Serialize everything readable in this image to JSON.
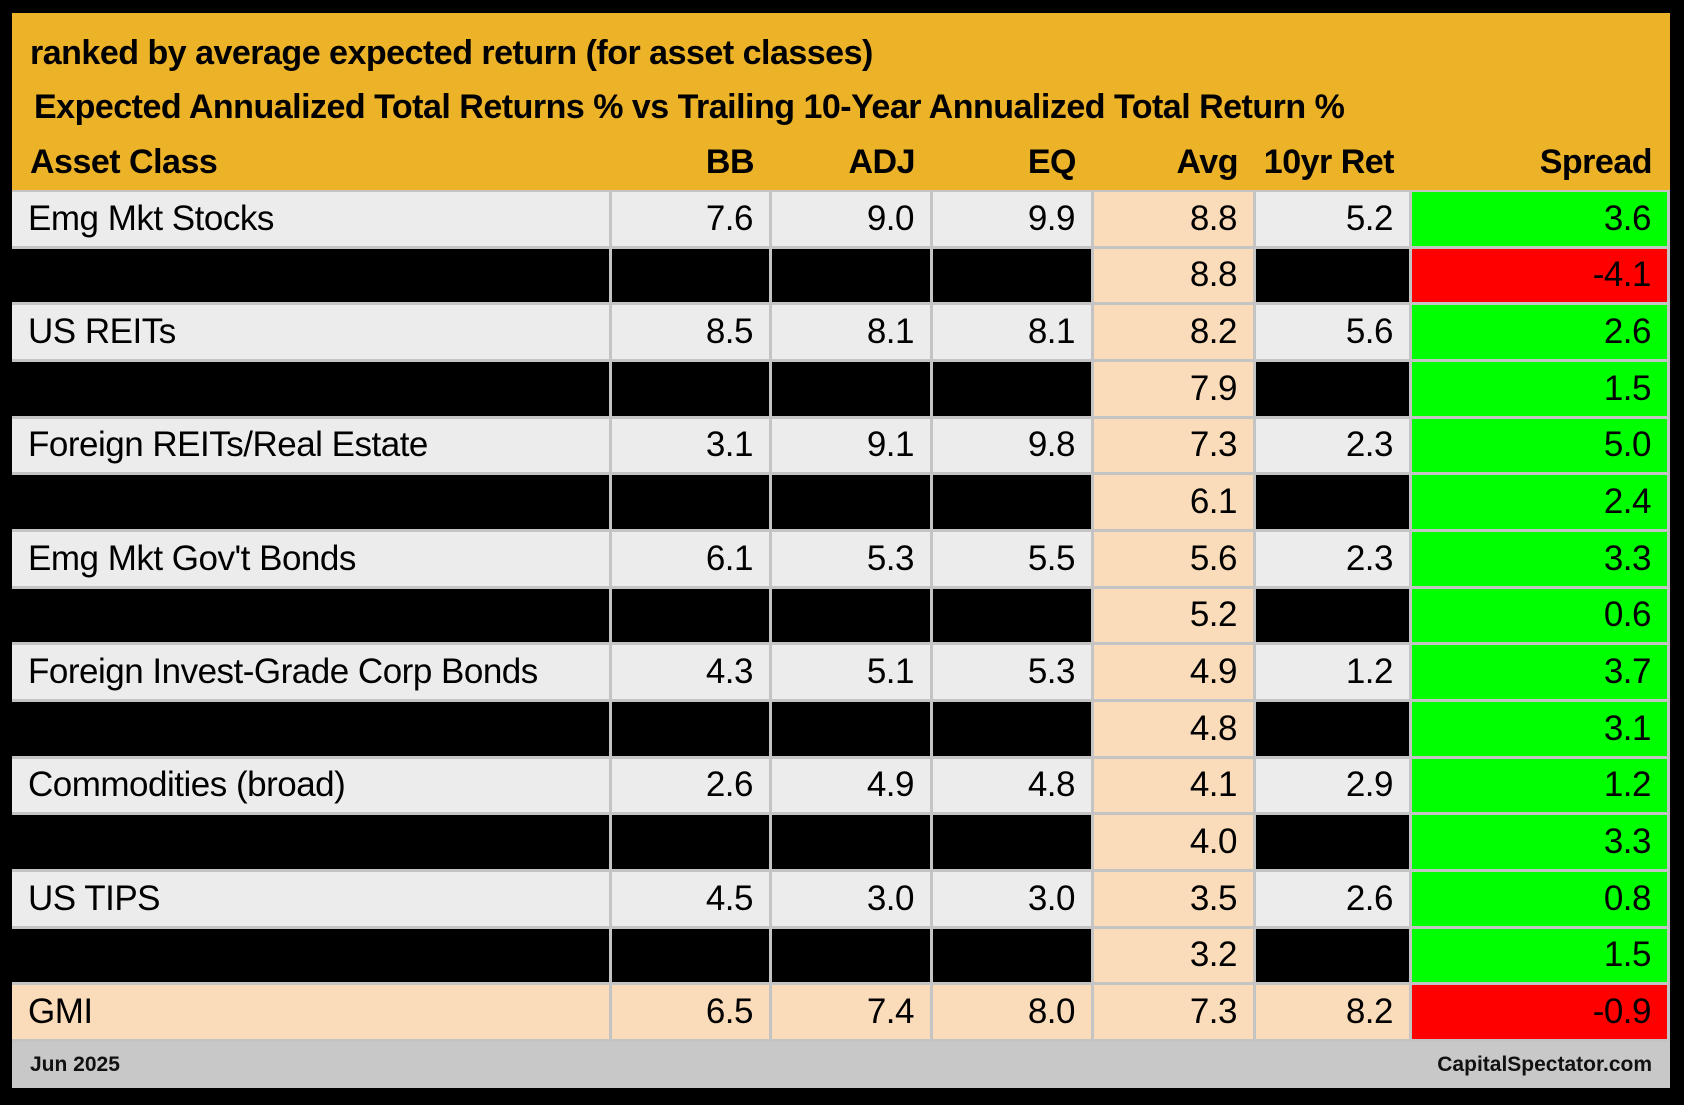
{
  "header": {
    "title_line1": "ranked by average expected return (for asset classes)",
    "title_line2": "Expected Annualized Total Returns % vs Trailing 10-Year Annualized Total Return %"
  },
  "chart_data": {
    "type": "table",
    "title": "Expected Annualized Total Returns % vs Trailing 10-Year Annualized Total Return %",
    "subtitle": "ranked by average expected return (for asset classes)",
    "columns": [
      "Asset Class",
      "BB",
      "ADJ",
      "EQ",
      "Avg",
      "10yr Ret",
      "Spread"
    ],
    "rows": [
      {
        "asset": "Emg Mkt Stocks",
        "values": [
          "7.6",
          "9.0",
          "9.9",
          "8.8",
          "5.2",
          "3.6"
        ],
        "redacted": false,
        "highlight": false
      },
      {
        "asset": null,
        "values": [
          null,
          null,
          null,
          "8.8",
          null,
          "-4.1"
        ],
        "redacted": true,
        "highlight": false
      },
      {
        "asset": "US REITs",
        "values": [
          "8.5",
          "8.1",
          "8.1",
          "8.2",
          "5.6",
          "2.6"
        ],
        "redacted": false,
        "highlight": false
      },
      {
        "asset": null,
        "values": [
          null,
          null,
          null,
          "7.9",
          null,
          "1.5"
        ],
        "redacted": true,
        "highlight": false
      },
      {
        "asset": "Foreign REITs/Real Estate",
        "values": [
          "3.1",
          "9.1",
          "9.8",
          "7.3",
          "2.3",
          "5.0"
        ],
        "redacted": false,
        "highlight": false
      },
      {
        "asset": null,
        "values": [
          null,
          null,
          null,
          "6.1",
          null,
          "2.4"
        ],
        "redacted": true,
        "highlight": false
      },
      {
        "asset": "Emg Mkt Gov't Bonds",
        "values": [
          "6.1",
          "5.3",
          "5.5",
          "5.6",
          "2.3",
          "3.3"
        ],
        "redacted": false,
        "highlight": false
      },
      {
        "asset": null,
        "values": [
          null,
          null,
          null,
          "5.2",
          null,
          "0.6"
        ],
        "redacted": true,
        "highlight": false
      },
      {
        "asset": "Foreign Invest-Grade Corp Bonds",
        "values": [
          "4.3",
          "5.1",
          "5.3",
          "4.9",
          "1.2",
          "3.7"
        ],
        "redacted": false,
        "highlight": false
      },
      {
        "asset": null,
        "values": [
          null,
          null,
          null,
          "4.8",
          null,
          "3.1"
        ],
        "redacted": true,
        "highlight": false
      },
      {
        "asset": "Commodities (broad)",
        "values": [
          "2.6",
          "4.9",
          "4.8",
          "4.1",
          "2.9",
          "1.2"
        ],
        "redacted": false,
        "highlight": false
      },
      {
        "asset": null,
        "values": [
          null,
          null,
          null,
          "4.0",
          null,
          "3.3"
        ],
        "redacted": true,
        "highlight": false
      },
      {
        "asset": "US TIPS",
        "values": [
          "4.5",
          "3.0",
          "3.0",
          "3.5",
          "2.6",
          "0.8"
        ],
        "redacted": false,
        "highlight": false
      },
      {
        "asset": null,
        "values": [
          null,
          null,
          null,
          "3.2",
          null,
          "1.5"
        ],
        "redacted": true,
        "highlight": false
      },
      {
        "asset": "GMI",
        "values": [
          "6.5",
          "7.4",
          "8.0",
          "7.3",
          "8.2",
          "-0.9"
        ],
        "redacted": false,
        "highlight": true
      }
    ]
  },
  "footer": {
    "date": "Jun 2025",
    "site": "CapitalSpectator.com"
  },
  "colors": {
    "header_orange": "#ECB228",
    "avg_peach": "#FBDCBA",
    "positive_green": "#00FF00",
    "negative_red": "#FF0000",
    "row_gray": "#ECECEC",
    "redacted_black": "#000000",
    "footer_gray": "#C8C8C8",
    "grid_line": "#C4C4C4"
  }
}
